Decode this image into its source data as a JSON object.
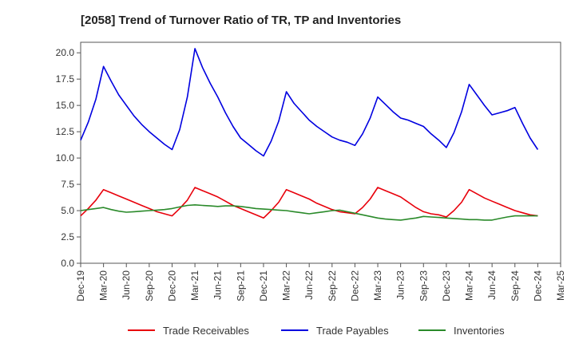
{
  "chart_data": {
    "type": "line",
    "title": "[2058]  Trend of Turnover Ratio of TR, TP and Inventories",
    "xlabel": "",
    "ylabel": "",
    "ylim": [
      0,
      21
    ],
    "yticks": [
      "0.0",
      "2.5",
      "5.0",
      "7.5",
      "10.0",
      "12.5",
      "15.0",
      "17.5",
      "20.0"
    ],
    "xticks": [
      "Dec-19",
      "Mar-20",
      "Jun-20",
      "Sep-20",
      "Dec-20",
      "Mar-21",
      "Jun-21",
      "Sep-21",
      "Dec-21",
      "Mar-22",
      "Jun-22",
      "Sep-22",
      "Dec-22",
      "Mar-23",
      "Jun-23",
      "Sep-23",
      "Dec-23",
      "Mar-24",
      "Jun-24",
      "Sep-24",
      "Dec-24",
      "Mar-25"
    ],
    "x_start": "Dec-19",
    "x_step_months": 1,
    "legend_position": "bottom",
    "grid": false,
    "series": [
      {
        "name": "Trade Receivables",
        "color": "#e8000b",
        "values": [
          4.5,
          5.2,
          6.0,
          7.0,
          6.7,
          6.4,
          6.1,
          5.8,
          5.5,
          5.2,
          4.9,
          4.7,
          4.5,
          5.2,
          6.0,
          7.2,
          6.9,
          6.6,
          6.3,
          5.9,
          5.5,
          5.2,
          4.9,
          4.6,
          4.3,
          5.0,
          5.8,
          7.0,
          6.7,
          6.4,
          6.1,
          5.7,
          5.4,
          5.1,
          4.9,
          4.8,
          4.7,
          5.3,
          6.1,
          7.2,
          6.9,
          6.6,
          6.3,
          5.8,
          5.3,
          4.9,
          4.7,
          4.6,
          4.4,
          5.0,
          5.8,
          7.0,
          6.6,
          6.2,
          5.9,
          5.6,
          5.3,
          5.0,
          4.8,
          4.6,
          4.5
        ]
      },
      {
        "name": "Trade Payables",
        "color": "#0000e0",
        "values": [
          11.7,
          13.4,
          15.6,
          18.7,
          17.3,
          16.0,
          15.0,
          14.0,
          13.2,
          12.5,
          11.9,
          11.3,
          10.8,
          12.7,
          15.8,
          20.4,
          18.6,
          17.1,
          15.8,
          14.3,
          13.0,
          11.9,
          11.3,
          10.7,
          10.2,
          11.6,
          13.5,
          16.3,
          15.2,
          14.4,
          13.6,
          13.0,
          12.5,
          12.0,
          11.7,
          11.5,
          11.2,
          12.3,
          13.8,
          15.8,
          15.1,
          14.4,
          13.8,
          13.6,
          13.3,
          13.0,
          12.3,
          11.7,
          11.0,
          12.4,
          14.4,
          17.0,
          16.0,
          15.0,
          14.1,
          14.3,
          14.5,
          14.8,
          13.3,
          11.9,
          10.8
        ]
      },
      {
        "name": "Inventories",
        "color": "#2a8a2a",
        "values": [
          5.0,
          5.1,
          5.2,
          5.3,
          5.1,
          4.95,
          4.85,
          4.9,
          4.95,
          5.0,
          5.05,
          5.1,
          5.2,
          5.35,
          5.5,
          5.55,
          5.5,
          5.45,
          5.4,
          5.45,
          5.45,
          5.4,
          5.3,
          5.2,
          5.15,
          5.1,
          5.05,
          5.0,
          4.9,
          4.8,
          4.7,
          4.8,
          4.9,
          5.0,
          5.05,
          4.9,
          4.75,
          4.6,
          4.45,
          4.3,
          4.2,
          4.15,
          4.1,
          4.2,
          4.3,
          4.45,
          4.4,
          4.35,
          4.3,
          4.25,
          4.2,
          4.15,
          4.15,
          4.1,
          4.1,
          4.25,
          4.4,
          4.5,
          4.5,
          4.5,
          4.5
        ]
      }
    ]
  }
}
